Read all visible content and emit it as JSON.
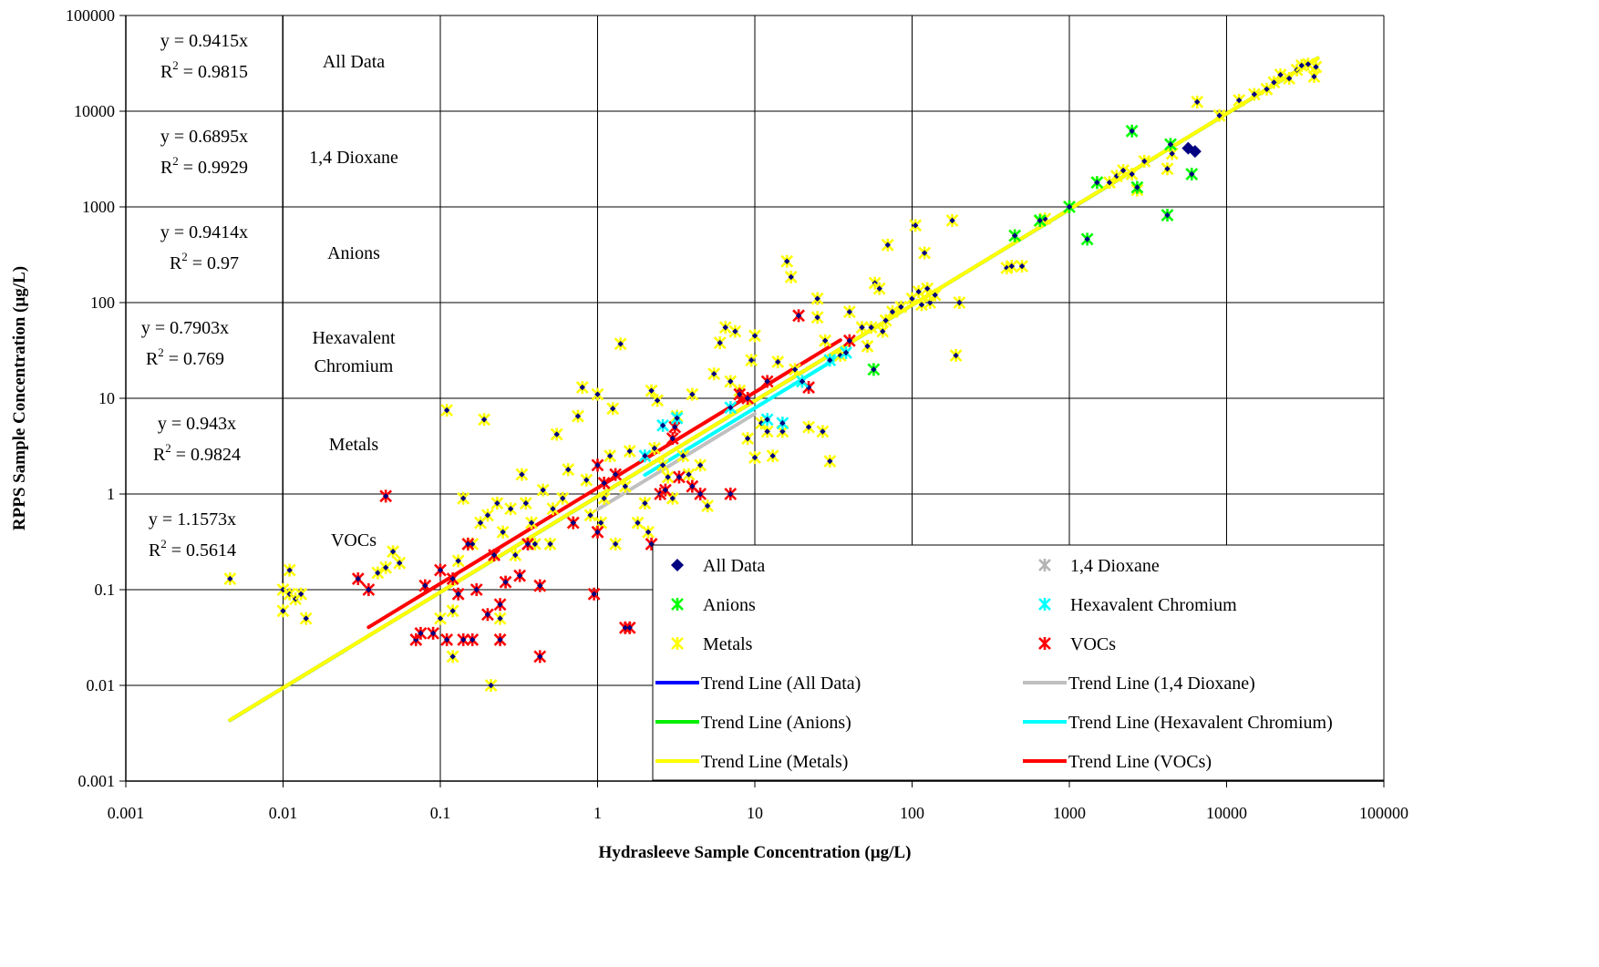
{
  "chart_data": {
    "type": "scatter",
    "title": "",
    "xlabel": "Hydrasleeve Sample Concentration (µg/L)",
    "ylabel": "RPPS Sample Concentration (µg/L)",
    "xscale": "log",
    "yscale": "log",
    "xlim": [
      0.001,
      100000
    ],
    "ylim": [
      0.001,
      100000
    ],
    "x_ticks": [
      "0.001",
      "0.01",
      "0.1",
      "1",
      "10",
      "100",
      "1000",
      "10000",
      "100000"
    ],
    "y_ticks": [
      "0.001",
      "0.01",
      "0.1",
      "1",
      "10",
      "100",
      "1000",
      "10000",
      "100000"
    ],
    "grid": true,
    "legend_position": "bottom-right",
    "colors": {
      "all_data": "#000080",
      "dioxane": "#b4b4b4",
      "anions": "#00ff00",
      "hexchrom": "#00ffff",
      "metals": "#ffff00",
      "vocs": "#ff0000",
      "trend_all": "#0000ff",
      "trend_dioxane": "#c0c0c0",
      "trend_anions": "#00ee00",
      "trend_hexchrom": "#00ffff",
      "trend_metals": "#ffff00",
      "trend_vocs": "#ff0000"
    },
    "regression_table": [
      {
        "equation": "y = 0.9415x",
        "r2": "= 0.9815",
        "group": [
          "All Data"
        ]
      },
      {
        "equation": "y = 0.6895x",
        "r2": "= 0.9929",
        "group": [
          "1,4 Dioxane"
        ]
      },
      {
        "equation": "y = 0.9414x",
        "r2": "= 0.97",
        "group": [
          "Anions"
        ]
      },
      {
        "equation": "y = 0.7903x",
        "r2": "= 0.769",
        "group": [
          "Hexavalent",
          "Chromium"
        ]
      },
      {
        "equation": "y = 0.943x",
        "r2": "= 0.9824",
        "group": [
          "Metals"
        ]
      },
      {
        "equation": "y = 1.1573x",
        "r2": "= 0.5614",
        "group": [
          "VOCs"
        ]
      }
    ],
    "r2_symbol": "R",
    "r2_exponent": "2",
    "legend": [
      {
        "label": "All Data",
        "kind": "diamond",
        "color": "#000080"
      },
      {
        "label": "1,4 Dioxane",
        "kind": "star",
        "color": "#b4b4b4"
      },
      {
        "label": "Anions",
        "kind": "star",
        "color": "#00ff00"
      },
      {
        "label": "Hexavalent Chromium",
        "kind": "star",
        "color": "#00ffff"
      },
      {
        "label": "Metals",
        "kind": "star",
        "color": "#ffff00"
      },
      {
        "label": "VOCs",
        "kind": "star",
        "color": "#ff0000"
      },
      {
        "label": "Trend Line (All Data)",
        "kind": "line",
        "color": "#0000ff"
      },
      {
        "label": "Trend Line (1,4 Dioxane)",
        "kind": "line",
        "color": "#c0c0c0"
      },
      {
        "label": "Trend Line (Anions)",
        "kind": "line",
        "color": "#00ee00"
      },
      {
        "label": "Trend Line (Hexavalent Chromium)",
        "kind": "line",
        "color": "#00ffff"
      },
      {
        "label": "Trend Line (Metals)",
        "kind": "line",
        "color": "#ffff00"
      },
      {
        "label": "Trend Line (VOCs)",
        "kind": "line",
        "color": "#ff0000"
      }
    ],
    "trend_lines": [
      {
        "name": "Trend Line (All Data)",
        "color": "#0000ff",
        "slope": 0.9415,
        "x": [
          0.0046,
          38000
        ]
      },
      {
        "name": "Trend Line (1,4 Dioxane)",
        "color": "#c0c0c0",
        "slope": 0.6895,
        "x": [
          1.0,
          10.0
        ]
      },
      {
        "name": "Trend Line (Anions)",
        "color": "#00ee00",
        "slope": 0.9414,
        "x": [
          0.0046,
          38000
        ]
      },
      {
        "name": "Trend Line (Hexavalent Chromium)",
        "color": "#00ffff",
        "slope": 0.7903,
        "x": [
          2.0,
          38
        ]
      },
      {
        "name": "Trend Line (Metals)",
        "color": "#ffff00",
        "slope": 0.943,
        "x": [
          0.0046,
          38000
        ]
      },
      {
        "name": "Trend Line (VOCs)",
        "color": "#ff0000",
        "slope": 1.1573,
        "x": [
          0.035,
          35
        ]
      }
    ],
    "series": [
      {
        "name": "Metals",
        "marker": "star-with-diamond",
        "color": "#ffff00",
        "points": [
          [
            0.0046,
            0.13
          ],
          [
            0.01,
            0.06
          ],
          [
            0.01,
            0.1
          ],
          [
            0.011,
            0.09
          ],
          [
            0.011,
            0.16
          ],
          [
            0.012,
            0.08
          ],
          [
            0.013,
            0.09
          ],
          [
            0.014,
            0.05
          ],
          [
            0.04,
            0.15
          ],
          [
            0.045,
            0.17
          ],
          [
            0.05,
            0.25
          ],
          [
            0.055,
            0.19
          ],
          [
            0.1,
            0.05
          ],
          [
            0.11,
            7.5
          ],
          [
            0.12,
            0.06
          ],
          [
            0.12,
            0.02
          ],
          [
            0.13,
            0.2
          ],
          [
            0.14,
            0.9
          ],
          [
            0.16,
            0.3
          ],
          [
            0.18,
            0.5
          ],
          [
            0.19,
            6.0
          ],
          [
            0.2,
            0.6
          ],
          [
            0.21,
            0.01
          ],
          [
            0.23,
            0.8
          ],
          [
            0.24,
            0.05
          ],
          [
            0.25,
            0.4
          ],
          [
            0.28,
            0.7
          ],
          [
            0.3,
            0.23
          ],
          [
            0.33,
            1.6
          ],
          [
            0.35,
            0.8
          ],
          [
            0.38,
            0.5
          ],
          [
            0.4,
            0.3
          ],
          [
            0.45,
            1.1
          ],
          [
            0.5,
            0.3
          ],
          [
            0.52,
            0.7
          ],
          [
            0.55,
            4.2
          ],
          [
            0.6,
            0.9
          ],
          [
            0.65,
            1.8
          ],
          [
            0.7,
            0.5
          ],
          [
            0.75,
            6.5
          ],
          [
            0.8,
            13
          ],
          [
            0.85,
            1.4
          ],
          [
            0.9,
            0.6
          ],
          [
            1.0,
            11
          ],
          [
            1.05,
            0.5
          ],
          [
            1.1,
            0.9
          ],
          [
            1.2,
            2.5
          ],
          [
            1.25,
            7.8
          ],
          [
            1.3,
            0.3
          ],
          [
            1.4,
            37
          ],
          [
            1.5,
            1.2
          ],
          [
            1.6,
            2.8
          ],
          [
            1.8,
            0.5
          ],
          [
            2.0,
            0.8
          ],
          [
            2.1,
            0.4
          ],
          [
            2.2,
            12
          ],
          [
            2.3,
            3.0
          ],
          [
            2.4,
            9.5
          ],
          [
            2.6,
            2.0
          ],
          [
            2.8,
            1.5
          ],
          [
            3.0,
            0.9
          ],
          [
            3.2,
            6.5
          ],
          [
            3.5,
            2.5
          ],
          [
            3.8,
            1.6
          ],
          [
            4.0,
            11
          ],
          [
            4.5,
            2.0
          ],
          [
            5.0,
            0.75
          ],
          [
            5.5,
            18
          ],
          [
            6.0,
            38
          ],
          [
            6.5,
            55
          ],
          [
            7.0,
            15
          ],
          [
            7.5,
            50
          ],
          [
            8.0,
            12
          ],
          [
            9.0,
            3.8
          ],
          [
            9.5,
            25
          ],
          [
            10,
            45
          ],
          [
            10,
            2.4
          ],
          [
            11,
            5.5
          ],
          [
            12,
            4.5
          ],
          [
            13,
            2.5
          ],
          [
            14,
            24
          ],
          [
            15,
            4.5
          ],
          [
            16,
            270
          ],
          [
            17,
            185
          ],
          [
            18,
            20
          ],
          [
            20,
            15
          ],
          [
            22,
            5
          ],
          [
            25,
            70
          ],
          [
            25,
            110
          ],
          [
            27,
            4.5
          ],
          [
            28,
            40
          ],
          [
            30,
            2.2
          ],
          [
            35,
            28
          ],
          [
            40,
            80
          ],
          [
            48,
            55
          ],
          [
            52,
            35
          ],
          [
            55,
            55
          ],
          [
            58,
            160
          ],
          [
            62,
            140
          ],
          [
            65,
            50
          ],
          [
            68,
            65
          ],
          [
            70,
            400
          ],
          [
            75,
            80
          ],
          [
            85,
            90
          ],
          [
            100,
            110
          ],
          [
            105,
            640
          ],
          [
            110,
            130
          ],
          [
            115,
            95
          ],
          [
            120,
            330
          ],
          [
            125,
            140
          ],
          [
            130,
            100
          ],
          [
            140,
            120
          ],
          [
            180,
            720
          ],
          [
            190,
            28
          ],
          [
            200,
            100
          ],
          [
            400,
            230
          ],
          [
            430,
            240
          ],
          [
            450,
            500
          ],
          [
            500,
            240
          ],
          [
            650,
            710
          ],
          [
            700,
            750
          ],
          [
            1000,
            1000
          ],
          [
            1500,
            1800
          ],
          [
            1800,
            1800
          ],
          [
            2000,
            2100
          ],
          [
            2200,
            2400
          ],
          [
            2500,
            2200
          ],
          [
            2700,
            1500
          ],
          [
            3000,
            3000
          ],
          [
            4200,
            2500
          ],
          [
            4500,
            3600
          ],
          [
            6500,
            12500
          ],
          [
            9000,
            9000
          ],
          [
            12000,
            13000
          ],
          [
            15000,
            15000
          ],
          [
            18000,
            17000
          ],
          [
            20000,
            20000
          ],
          [
            22000,
            24000
          ],
          [
            25000,
            22000
          ],
          [
            28000,
            27000
          ],
          [
            30000,
            30000
          ],
          [
            33000,
            31000
          ],
          [
            36000,
            23000
          ],
          [
            37000,
            29000
          ]
        ]
      },
      {
        "name": "VOCs",
        "marker": "star-with-diamond",
        "color": "#ff0000",
        "points": [
          [
            0.03,
            0.13
          ],
          [
            0.035,
            0.1
          ],
          [
            0.045,
            0.95
          ],
          [
            0.07,
            0.03
          ],
          [
            0.075,
            0.035
          ],
          [
            0.08,
            0.11
          ],
          [
            0.09,
            0.035
          ],
          [
            0.1,
            0.16
          ],
          [
            0.11,
            0.03
          ],
          [
            0.12,
            0.13
          ],
          [
            0.13,
            0.09
          ],
          [
            0.14,
            0.03
          ],
          [
            0.15,
            0.3
          ],
          [
            0.16,
            0.03
          ],
          [
            0.17,
            0.1
          ],
          [
            0.2,
            0.055
          ],
          [
            0.22,
            0.23
          ],
          [
            0.24,
            0.07
          ],
          [
            0.24,
            0.03
          ],
          [
            0.26,
            0.12
          ],
          [
            0.32,
            0.14
          ],
          [
            0.36,
            0.3
          ],
          [
            0.43,
            0.11
          ],
          [
            0.43,
            0.02
          ],
          [
            0.7,
            0.5
          ],
          [
            0.95,
            0.09
          ],
          [
            1.0,
            0.4
          ],
          [
            1.0,
            2.0
          ],
          [
            1.1,
            1.3
          ],
          [
            1.3,
            1.6
          ],
          [
            1.5,
            0.04
          ],
          [
            1.6,
            0.04
          ],
          [
            2.2,
            0.3
          ],
          [
            2.5,
            1.0
          ],
          [
            2.7,
            1.1
          ],
          [
            3.0,
            3.8
          ],
          [
            3.1,
            5.0
          ],
          [
            3.3,
            1.5
          ],
          [
            4.0,
            1.2
          ],
          [
            4.5,
            1.0
          ],
          [
            7.0,
            1.0
          ],
          [
            8.0,
            11
          ],
          [
            9.0,
            10
          ],
          [
            12,
            15
          ],
          [
            19,
            73
          ],
          [
            22,
            13
          ],
          [
            40,
            40
          ]
        ]
      },
      {
        "name": "Anions",
        "marker": "star-with-diamond",
        "color": "#00ff00",
        "points": [
          [
            57,
            20
          ],
          [
            450,
            500
          ],
          [
            650,
            720
          ],
          [
            1000,
            1000
          ],
          [
            1300,
            460
          ],
          [
            1500,
            1800
          ],
          [
            2500,
            6200
          ],
          [
            2700,
            1600
          ],
          [
            4200,
            820
          ],
          [
            4400,
            4500
          ],
          [
            6000,
            2200
          ]
        ]
      },
      {
        "name": "Hexavalent Chromium",
        "marker": "star-with-diamond",
        "color": "#00ffff",
        "points": [
          [
            2.0,
            2.5
          ],
          [
            2.6,
            5.2
          ],
          [
            3.2,
            6.2
          ],
          [
            7.0,
            8.0
          ],
          [
            12,
            6.0
          ],
          [
            15,
            5.5
          ],
          [
            20,
            15
          ],
          [
            30,
            25
          ],
          [
            38,
            30
          ]
        ]
      },
      {
        "name": "All Data",
        "marker": "diamond",
        "color": "#000080",
        "points": [
          [
            5700,
            4100
          ],
          [
            6300,
            3800
          ]
        ]
      }
    ]
  }
}
